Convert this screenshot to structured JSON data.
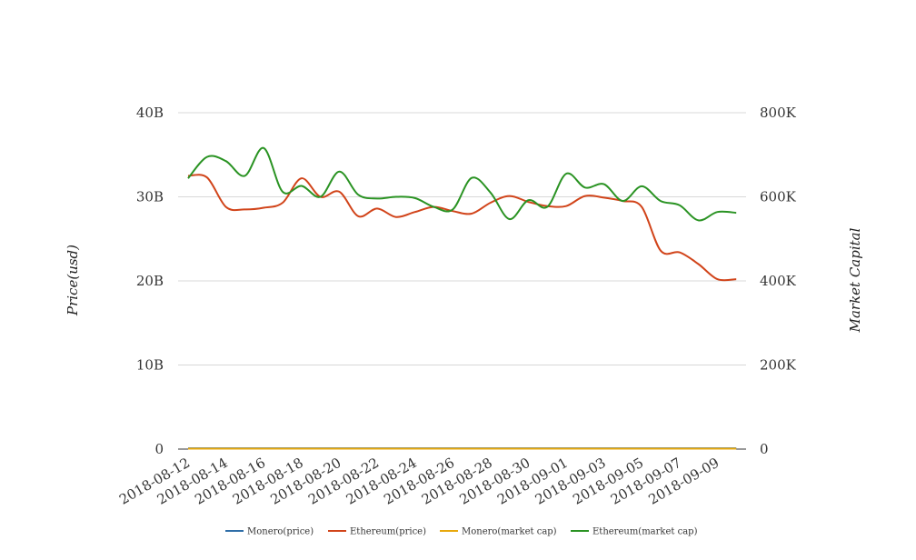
{
  "chart_data": {
    "type": "line",
    "title": "",
    "ylabel_left": "Price(usd)",
    "ylabel_right": "Market Capital",
    "y_left_ticks": [
      "0",
      "10B",
      "20B",
      "30B",
      "40B"
    ],
    "y_right_ticks": [
      "0",
      "200K",
      "400K",
      "600K",
      "800K"
    ],
    "y_left_range": [
      0,
      40000000000
    ],
    "y_right_range": [
      0,
      800000
    ],
    "grid": true,
    "legend_position": "bottom",
    "x_tick_labels": [
      "2018-08-12",
      "2018-08-14",
      "2018-08-16",
      "2018-08-18",
      "2018-08-20",
      "2018-08-22",
      "2018-08-24",
      "2018-08-26",
      "2018-08-28",
      "2018-08-30",
      "2018-09-01",
      "2018-09-03",
      "2018-09-05",
      "2018-09-07",
      "2018-09-09"
    ],
    "x": [
      "2018-08-12",
      "2018-08-13",
      "2018-08-14",
      "2018-08-15",
      "2018-08-16",
      "2018-08-17",
      "2018-08-18",
      "2018-08-19",
      "2018-08-20",
      "2018-08-21",
      "2018-08-22",
      "2018-08-23",
      "2018-08-24",
      "2018-08-25",
      "2018-08-26",
      "2018-08-27",
      "2018-08-28",
      "2018-08-29",
      "2018-08-30",
      "2018-08-31",
      "2018-09-01",
      "2018-09-02",
      "2018-09-03",
      "2018-09-04",
      "2018-09-05",
      "2018-09-06",
      "2018-09-07",
      "2018-09-08",
      "2018-09-09",
      "2018-09-10"
    ],
    "series": [
      {
        "name": "Monero(price)",
        "axis": "left",
        "color": "#2f6ea8",
        "values": [
          100000000,
          100000000,
          100000000,
          100000000,
          100000000,
          100000000,
          100000000,
          100000000,
          100000000,
          100000000,
          100000000,
          100000000,
          100000000,
          100000000,
          100000000,
          100000000,
          100000000,
          100000000,
          100000000,
          100000000,
          100000000,
          100000000,
          100000000,
          100000000,
          100000000,
          100000000,
          100000000,
          100000000,
          100000000,
          100000000
        ]
      },
      {
        "name": "Ethereum(price)",
        "axis": "left",
        "color": "#d1441a",
        "values": [
          32500000000,
          32300000000,
          28800000000,
          28500000000,
          28700000000,
          29300000000,
          32200000000,
          30000000000,
          30600000000,
          27700000000,
          28600000000,
          27600000000,
          28200000000,
          28800000000,
          28300000000,
          28000000000,
          29300000000,
          30100000000,
          29400000000,
          28900000000,
          28900000000,
          30100000000,
          29900000000,
          29500000000,
          28800000000,
          23600000000,
          23400000000,
          22000000000,
          20200000000,
          20200000000
        ]
      },
      {
        "name": "Monero(market cap)",
        "axis": "right",
        "color": "#e8a80c",
        "values": [
          1000,
          1000,
          1000,
          1000,
          1000,
          1000,
          1000,
          1000,
          1000,
          1000,
          1000,
          1000,
          1000,
          1000,
          1000,
          1000,
          1000,
          1000,
          1000,
          1000,
          1000,
          1000,
          1000,
          1000,
          1000,
          1000,
          1000,
          1000,
          1000,
          1000
        ]
      },
      {
        "name": "Ethereum(market cap)",
        "axis": "right",
        "color": "#2a9323",
        "values": [
          644000,
          695000,
          685000,
          650000,
          716000,
          612000,
          626000,
          600000,
          660000,
          605000,
          596000,
          600000,
          597000,
          576000,
          570000,
          645000,
          610000,
          547000,
          592000,
          576000,
          655000,
          622000,
          630000,
          590000,
          625000,
          590000,
          580000,
          544000,
          564000,
          562000
        ]
      }
    ]
  }
}
